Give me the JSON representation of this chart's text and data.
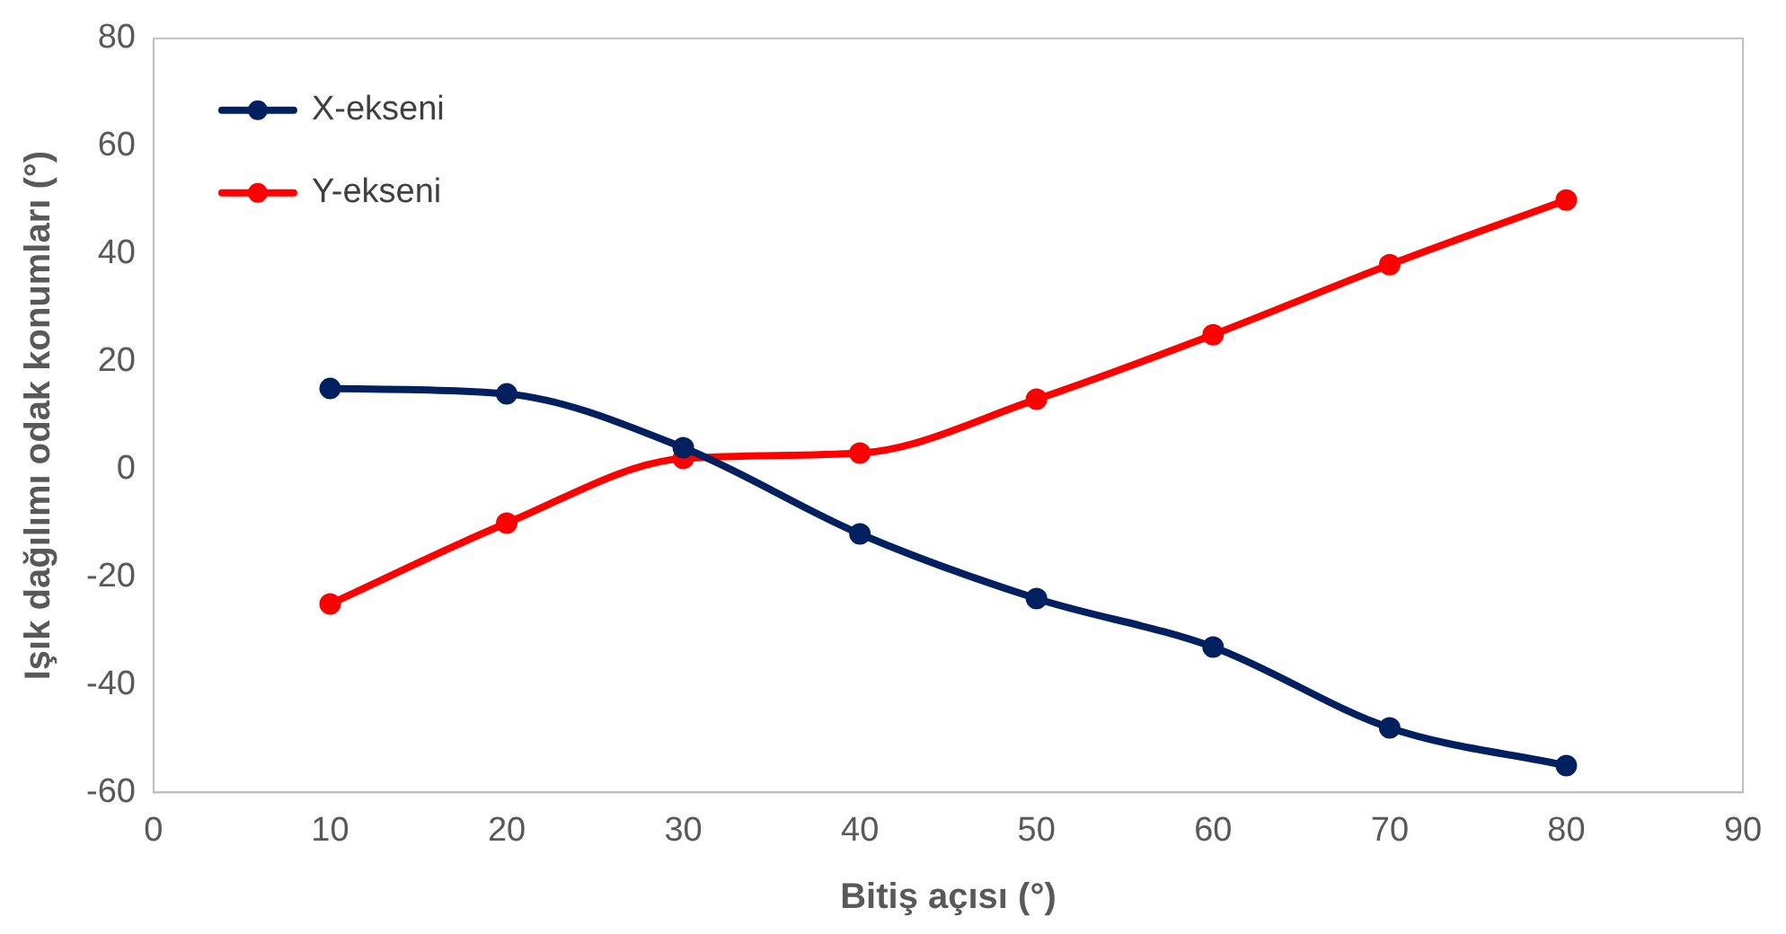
{
  "chart_data": {
    "type": "line",
    "xlabel": "Bitiş açısı (°)",
    "ylabel": "Işık dağılımı odak konumları (°)",
    "x": [
      10,
      20,
      30,
      40,
      50,
      60,
      70,
      80
    ],
    "series": [
      {
        "name": "X-ekseni",
        "color": "#002060",
        "values": [
          15,
          14,
          4,
          -12,
          -24,
          -33,
          -48,
          -55
        ]
      },
      {
        "name": "Y-ekseni",
        "color": "#ff0000",
        "values": [
          -25,
          -10,
          2,
          3,
          13,
          25,
          38,
          50
        ]
      }
    ],
    "xlim": [
      0,
      90
    ],
    "xticks": [
      0,
      10,
      20,
      30,
      40,
      50,
      60,
      70,
      80,
      90
    ],
    "ylim": [
      -60,
      80
    ],
    "yticks": [
      -60,
      -40,
      -20,
      0,
      20,
      40,
      60,
      80
    ],
    "grid": false,
    "legend": "top left",
    "marker": "circle",
    "line_style": "solid"
  }
}
